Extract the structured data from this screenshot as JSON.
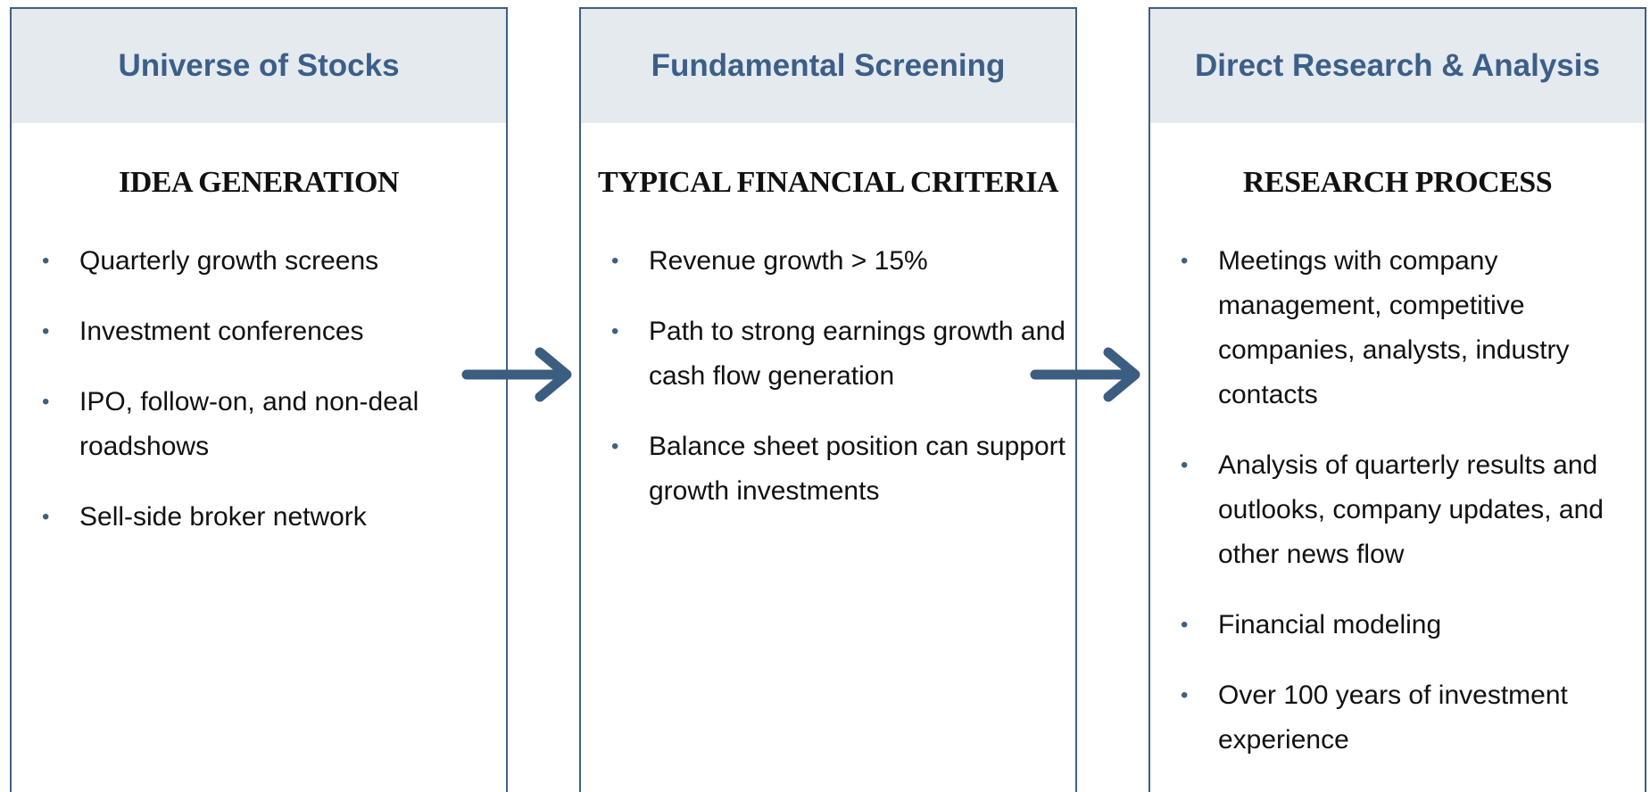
{
  "columns": [
    {
      "title": "Universe of Stocks",
      "subtitle": "IDEA GENERATION",
      "items": [
        "Quarterly growth screens",
        "Investment conferences",
        "IPO, follow-on, and non-deal roadshows",
        "Sell-side broker network"
      ]
    },
    {
      "title": "Fundamental Screening",
      "subtitle": "TYPICAL FINANCIAL CRITERIA",
      "items": [
        "Revenue growth > 15%",
        "Path to strong earnings growth and cash flow generation",
        "Balance sheet position can support growth investments"
      ]
    },
    {
      "title": "Direct Research & Analysis",
      "subtitle": "RESEARCH PROCESS",
      "items": [
        "Meetings with company management, competitive companies, analysts, industry contacts",
        "Analysis of quarterly results and outlooks, company updates, and other news flow",
        "Financial modeling",
        "Over 100 years of investment experience"
      ]
    }
  ]
}
